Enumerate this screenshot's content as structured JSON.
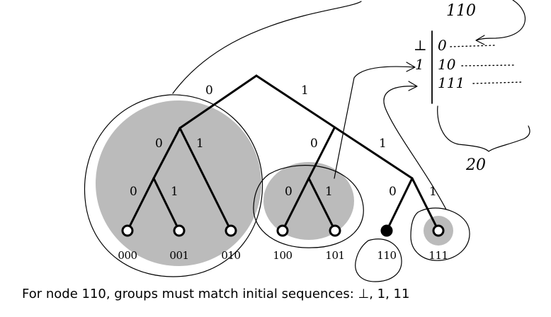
{
  "tree": {
    "edge_labels": {
      "root_left": "0",
      "root_right": "1",
      "n0_left": "0",
      "n0_right": "1",
      "n00_left": "0",
      "n00_right": "1",
      "n1_left": "0",
      "n1_right": "1",
      "n10_left": "0",
      "n10_right": "1",
      "n11_left": "0",
      "n11_right": "1"
    },
    "leaves": [
      "000",
      "001",
      "010",
      "100",
      "101",
      "110",
      "111"
    ],
    "highlighted_leaf": "110"
  },
  "handwriting": {
    "top_label": "110",
    "sequences": [
      {
        "marker": "⊥",
        "value": "0"
      },
      {
        "marker": "1",
        "value": "10"
      },
      {
        "marker": "",
        "value": "111"
      }
    ],
    "count_label": "20"
  },
  "caption": "For node 110, groups must match initial sequences: ⊥, 1, 11"
}
